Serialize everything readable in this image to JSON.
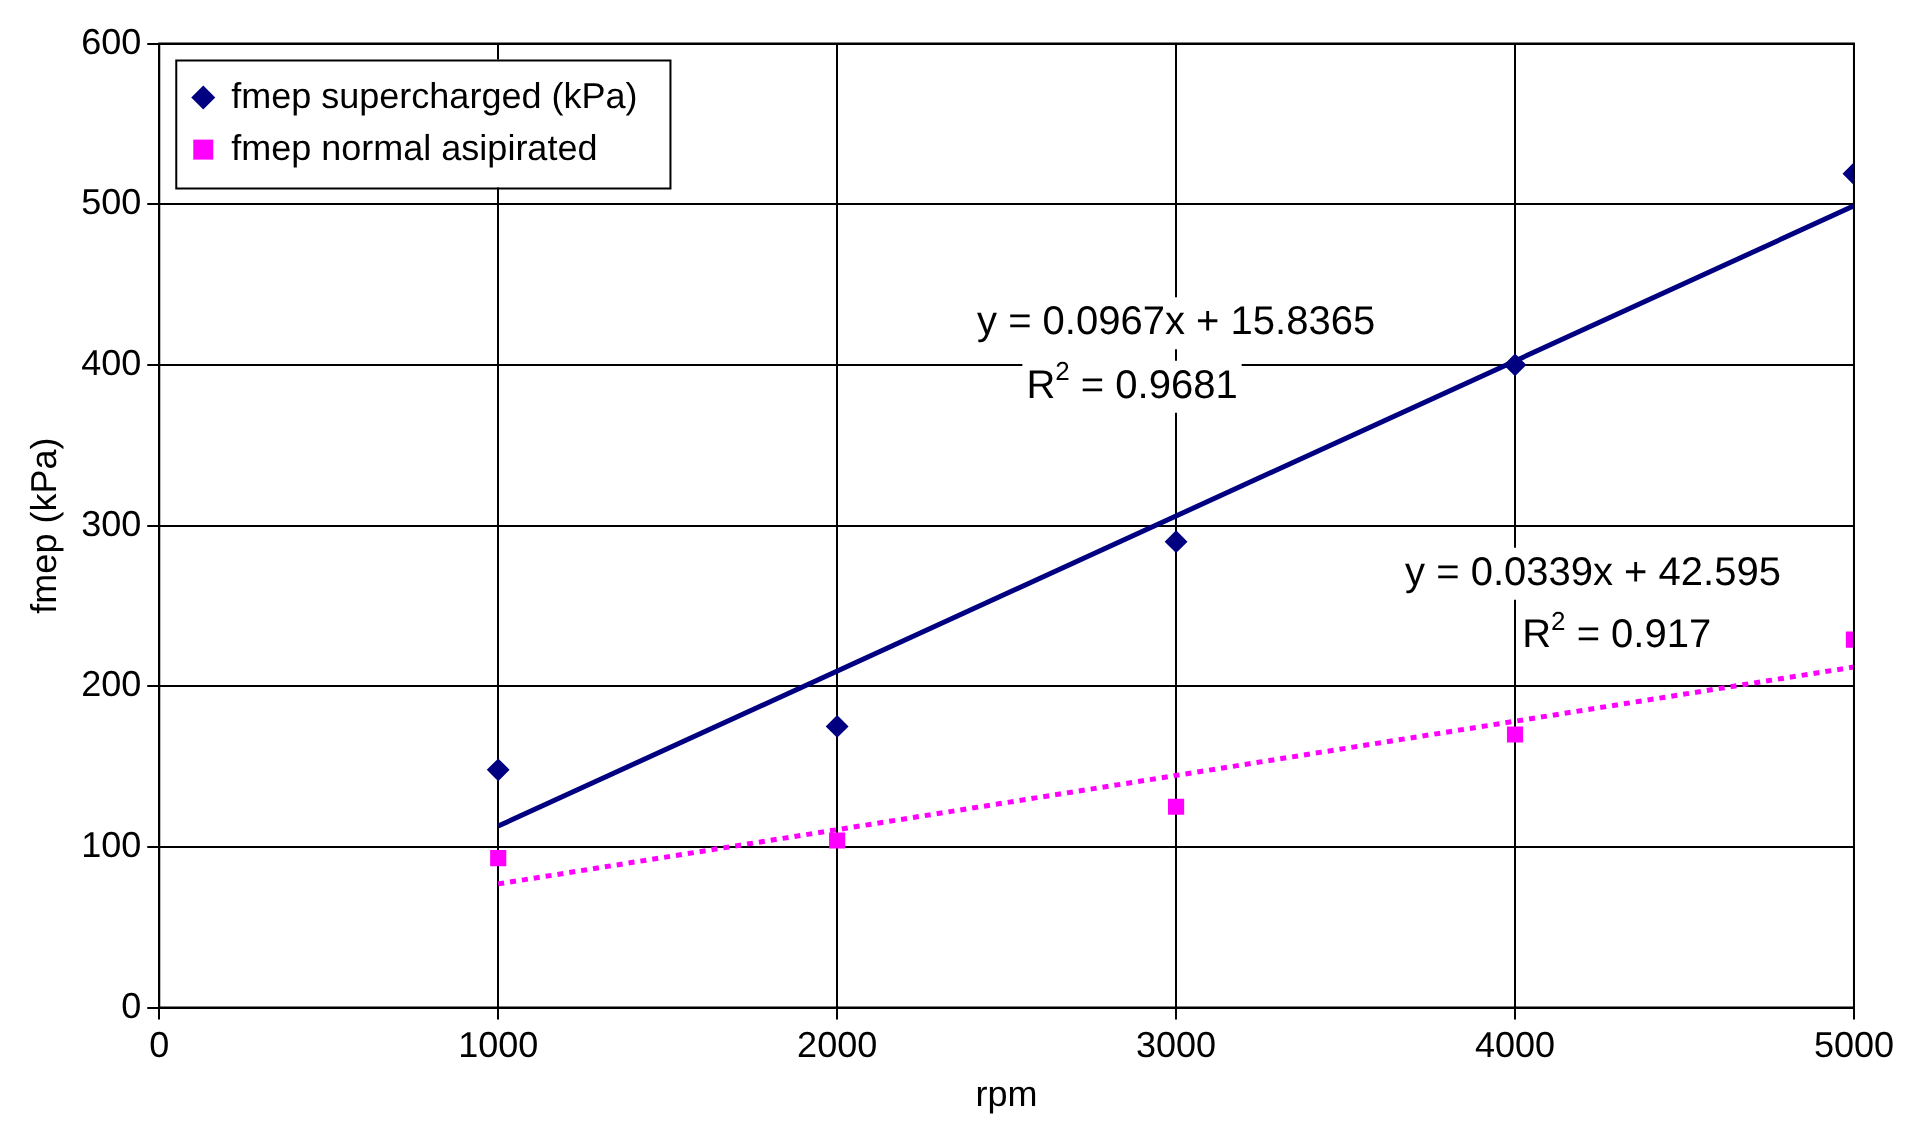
{
  "chart_data": {
    "type": "scatter",
    "xlabel": "rpm",
    "ylabel": "fmep (kPa)",
    "xlim": [
      0,
      5000
    ],
    "xticks": [
      0,
      1000,
      2000,
      3000,
      4000,
      5000
    ],
    "ylim": [
      0,
      600
    ],
    "yticks": [
      0,
      100,
      200,
      300,
      400,
      500,
      600
    ],
    "grid": true,
    "legend": "top left",
    "series": [
      {
        "name": "fmep supercharged (kPa)",
        "color": "#000080",
        "marker": "diamond",
        "x": [
          1000,
          2000,
          3000,
          4000,
          5000
        ],
        "values": [
          148,
          175,
          290,
          400,
          519
        ]
      },
      {
        "name": "fmep normal asipirated",
        "color": "#ff00ff",
        "marker": "square",
        "x": [
          1000,
          2000,
          3000,
          4000,
          5000
        ],
        "values": [
          93,
          104,
          125,
          170,
          229
        ]
      },
      {
        "type": "line",
        "color": "#000080",
        "marker": "none",
        "line_style": "solid",
        "x": [
          1000,
          5000
        ],
        "values": [
          113,
          499
        ]
      },
      {
        "type": "line",
        "color": "#ff00ff",
        "marker": "none",
        "line_style": "dotted",
        "x": [
          1000,
          5000
        ],
        "values": [
          77,
          212
        ]
      }
    ],
    "annotations": [
      "y = 0.0967x + 15.8365",
      "R$^{2}$ = 0.9681",
      "y = 0.0339x + 42.595",
      "R$^{2}$ = 0.917"
    ]
  }
}
